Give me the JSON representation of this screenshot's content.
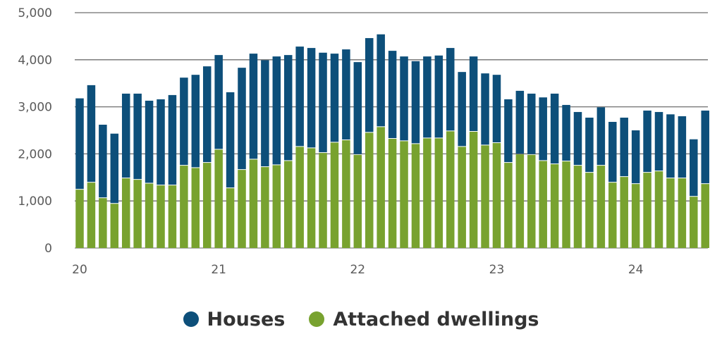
{
  "chart_data": {
    "type": "bar",
    "stacked": true,
    "categories": [
      "20",
      "",
      "",
      "",
      "",
      "",
      "",
      "",
      "",
      "",
      "",
      "",
      "21",
      "",
      "",
      "",
      "",
      "",
      "",
      "",
      "",
      "",
      "",
      "",
      "22",
      "",
      "",
      "",
      "",
      "",
      "",
      "",
      "",
      "",
      "",
      "",
      "23",
      "",
      "",
      "",
      "",
      "",
      "",
      "",
      "",
      "",
      "",
      "",
      "24",
      "",
      "",
      "",
      "",
      "",
      ""
    ],
    "series": [
      {
        "name": "Attached dwellings",
        "values": [
          1240,
          1390,
          1060,
          940,
          1480,
          1450,
          1370,
          1330,
          1330,
          1750,
          1700,
          1810,
          2090,
          1270,
          1660,
          1880,
          1720,
          1760,
          1850,
          2150,
          2120,
          2020,
          2240,
          2290,
          1980,
          2450,
          2570,
          2320,
          2270,
          2210,
          2330,
          2330,
          2480,
          2150,
          2470,
          2180,
          2230,
          1810,
          1990,
          1980,
          1850,
          1780,
          1840,
          1750,
          1600,
          1750,
          1390,
          1510,
          1360,
          1600,
          1630,
          1480,
          1480,
          1090,
          1360
        ]
      },
      {
        "name": "Houses",
        "values": [
          1940,
          2070,
          1560,
          1490,
          1800,
          1830,
          1760,
          1830,
          1920,
          1870,
          1980,
          2050,
          2010,
          2040,
          2170,
          2250,
          2270,
          2310,
          2250,
          2130,
          2130,
          2130,
          1890,
          1930,
          1970,
          2010,
          1970,
          1870,
          1800,
          1760,
          1740,
          1760,
          1770,
          1590,
          1600,
          1530,
          1450,
          1350,
          1350,
          1300,
          1350,
          1500,
          1200,
          1140,
          1170,
          1240,
          1290,
          1260,
          1140,
          1320,
          1260,
          1360,
          1320,
          1220,
          1560
        ]
      }
    ],
    "x_tick_labels": [
      "20",
      "21",
      "22",
      "23",
      "24"
    ],
    "y_ticks": [
      0,
      1000,
      2000,
      3000,
      4000,
      5000
    ],
    "ylim": [
      0,
      5000
    ],
    "grid": true,
    "legend_position": "bottom-center",
    "colors": {
      "Houses": "#0d4f7a",
      "Attached dwellings": "#78a22f"
    }
  },
  "y_tick_labels": [
    "0",
    "1,000",
    "2,000",
    "3,000",
    "4,000",
    "5,000"
  ],
  "legend": [
    {
      "label": "Houses",
      "color": "#0d4f7a"
    },
    {
      "label": "Attached dwellings",
      "color": "#78a22f"
    }
  ]
}
